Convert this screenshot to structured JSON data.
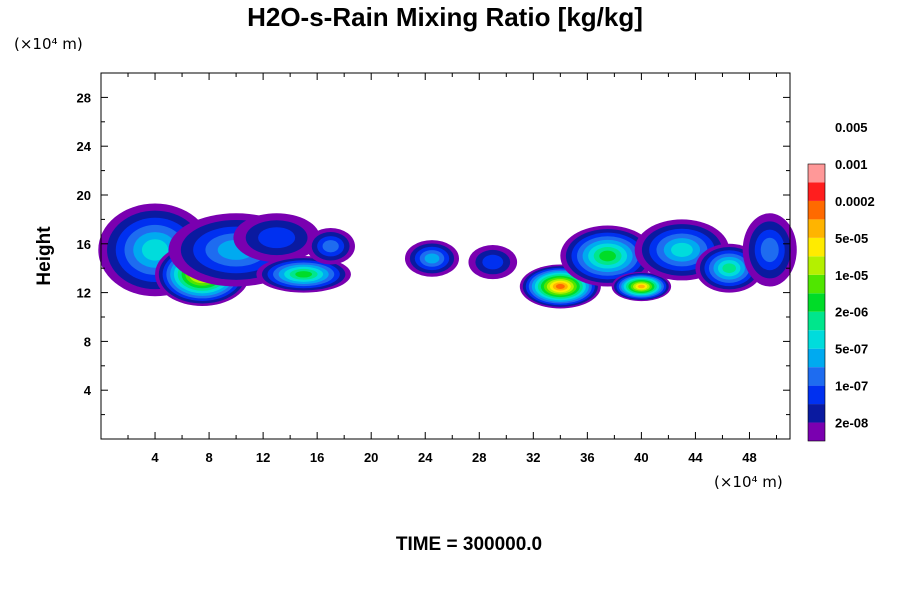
{
  "chart_data": {
    "type": "heatmap",
    "title": "H2O-s-Rain Mixing Ratio [kg/kg]",
    "xlabel": "",
    "ylabel": "Height",
    "x_unit": "(×10⁴ m)",
    "y_unit": "(×10⁴ m)",
    "xlim": [
      0,
      51
    ],
    "ylim": [
      0,
      30
    ],
    "x_ticks": [
      "4",
      "8",
      "12",
      "16",
      "20",
      "24",
      "28",
      "32",
      "36",
      "40",
      "44",
      "48"
    ],
    "y_ticks": [
      "4",
      "8",
      "12",
      "16",
      "20",
      "24",
      "28"
    ],
    "footer": "TIME = 300000.0",
    "colorbar": {
      "colors": [
        "#7a00b0",
        "#0a1aa0",
        "#0030f0",
        "#1e6cf0",
        "#00aaf0",
        "#00dcdc",
        "#00e68c",
        "#00dc28",
        "#50e600",
        "#b4f000",
        "#ffeb00",
        "#ffb400",
        "#ff6a00",
        "#ff1e1e",
        "#ff9898"
      ],
      "labels": [
        "2e-08",
        "1e-07",
        "5e-07",
        "2e-06",
        "1e-05",
        "5e-05",
        "0.0002",
        "0.001",
        "0.005"
      ]
    },
    "field": {
      "description_levels": "0 = none, 1..15 colorbar classes",
      "blobs": [
        {
          "cx": 4.0,
          "cy": 15.5,
          "rx": 4.2,
          "ry": 3.8,
          "level": 6
        },
        {
          "cx": 7.5,
          "cy": 13.5,
          "rx": 3.5,
          "ry": 2.6,
          "level": 12
        },
        {
          "cx": 10.0,
          "cy": 15.5,
          "rx": 5.0,
          "ry": 3.0,
          "level": 5
        },
        {
          "cx": 13.0,
          "cy": 16.5,
          "rx": 3.2,
          "ry": 2.0,
          "level": 3
        },
        {
          "cx": 15.0,
          "cy": 13.5,
          "rx": 3.5,
          "ry": 1.5,
          "level": 8
        },
        {
          "cx": 17.0,
          "cy": 15.8,
          "rx": 1.8,
          "ry": 1.5,
          "level": 4
        },
        {
          "cx": 24.5,
          "cy": 14.8,
          "rx": 2.0,
          "ry": 1.5,
          "level": 5
        },
        {
          "cx": 29.0,
          "cy": 14.5,
          "rx": 1.8,
          "ry": 1.4,
          "level": 3
        },
        {
          "cx": 34.0,
          "cy": 12.5,
          "rx": 3.0,
          "ry": 1.8,
          "level": 13
        },
        {
          "cx": 37.5,
          "cy": 15.0,
          "rx": 3.5,
          "ry": 2.5,
          "level": 8
        },
        {
          "cx": 40.0,
          "cy": 12.5,
          "rx": 2.2,
          "ry": 1.2,
          "level": 12
        },
        {
          "cx": 43.0,
          "cy": 15.5,
          "rx": 3.5,
          "ry": 2.5,
          "level": 6
        },
        {
          "cx": 46.5,
          "cy": 14.0,
          "rx": 2.5,
          "ry": 2.0,
          "level": 7
        },
        {
          "cx": 49.5,
          "cy": 15.5,
          "rx": 2.0,
          "ry": 3.0,
          "level": 4
        }
      ]
    }
  }
}
